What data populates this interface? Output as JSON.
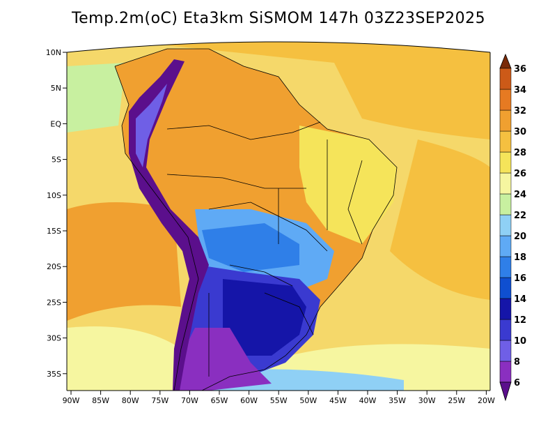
{
  "title": "Temp.2m(oC) Eta3km SiSMOM 147h 03Z23SEP2025",
  "lat_ticks": [
    "10N",
    "5N",
    "EQ",
    "5S",
    "10S",
    "15S",
    "20S",
    "25S",
    "30S",
    "35S"
  ],
  "lon_ticks": [
    "90W",
    "85W",
    "80W",
    "75W",
    "70W",
    "65W",
    "60W",
    "55W",
    "50W",
    "45W",
    "40W",
    "35W",
    "30W",
    "25W",
    "20W"
  ],
  "colorbar": {
    "labels": [
      "6",
      "8",
      "10",
      "12",
      "14",
      "16",
      "18",
      "20",
      "22",
      "24",
      "26",
      "28",
      "30",
      "32",
      "34",
      "36"
    ],
    "colors": [
      "#5b0f8c",
      "#8a2fc0",
      "#6f5fe6",
      "#3a3ad0",
      "#1515a8",
      "#0f4fd0",
      "#2f7fe8",
      "#5faaf5",
      "#8fd0f5",
      "#c8f0a0",
      "#f6f6a0",
      "#f5e45a",
      "#f5c040",
      "#f0a030",
      "#e67a22",
      "#cc5a18",
      "#a84010",
      "#7a2a08"
    ],
    "min": 6,
    "max": 36,
    "step": 2,
    "extend": "both"
  },
  "palette": {
    "ocean_warm": "#f5c040",
    "ocean_hot": "#f0a030",
    "ocean_mild": "#f6e06a",
    "land_hot": "#f0a030",
    "land_warm": "#f5c040",
    "land_mild": "#f5e45a",
    "andes_cold": "#5b0f8c",
    "south_cold": "#3a3ad0",
    "border": "#000000"
  }
}
